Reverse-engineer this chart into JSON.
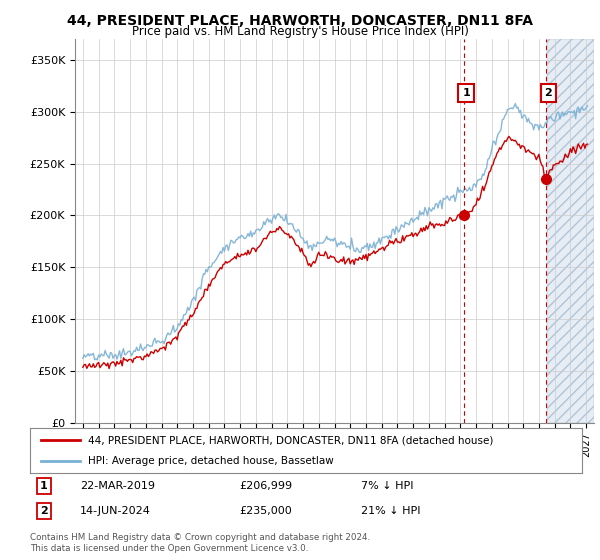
{
  "title": "44, PRESIDENT PLACE, HARWORTH, DONCASTER, DN11 8FA",
  "subtitle": "Price paid vs. HM Land Registry's House Price Index (HPI)",
  "ylabel_ticks": [
    "£0",
    "£50K",
    "£100K",
    "£150K",
    "£200K",
    "£250K",
    "£300K",
    "£350K"
  ],
  "ytick_vals": [
    0,
    50000,
    100000,
    150000,
    200000,
    250000,
    300000,
    350000
  ],
  "ylim": [
    0,
    370000
  ],
  "xlim_start": 1994.5,
  "xlim_end": 2027.5,
  "sale1_date": 2019.22,
  "sale1_price": 200000,
  "sale1_label": "1",
  "sale2_date": 2024.45,
  "sale2_price": 235000,
  "sale2_label": "2",
  "legend_line1": "44, PRESIDENT PLACE, HARWORTH, DONCASTER, DN11 8FA (detached house)",
  "legend_line2": "HPI: Average price, detached house, Bassetlaw",
  "footer": "Contains HM Land Registry data © Crown copyright and database right 2024.\nThis data is licensed under the Open Government Licence v3.0.",
  "sale_color": "#cc0000",
  "hpi_color": "#7ab0d4",
  "future_shade_color": "#dce6f0",
  "vline_color": "#cc0000",
  "background_color": "#ffffff",
  "grid_color": "#cccccc",
  "title_fontsize": 10,
  "subtitle_fontsize": 8.5
}
